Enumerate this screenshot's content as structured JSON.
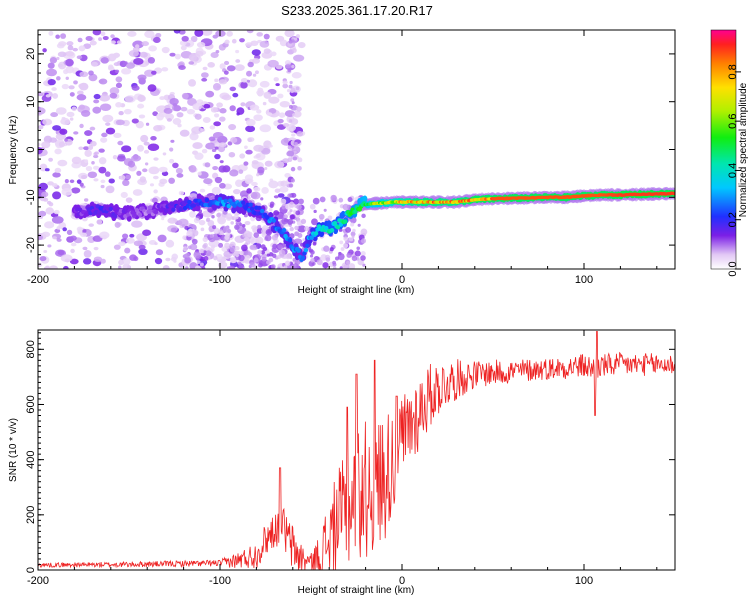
{
  "title": "S233.2025.361.17.20.R17",
  "chart_data": [
    {
      "type": "heatmap",
      "name": "spectrogram",
      "xlabel": "Height of straight line (km)",
      "ylabel": "Frequency (Hz)",
      "xlim": [
        -200,
        150
      ],
      "ylim": [
        -25,
        25
      ],
      "xticks": [
        -200,
        -100,
        0,
        100
      ],
      "xtick_labels": [
        "-200",
        "-100",
        "0",
        "100"
      ],
      "yticks": [
        -20,
        -10,
        0,
        10,
        20
      ],
      "ytick_labels": [
        "-20",
        "-10",
        "0",
        "10",
        "20"
      ],
      "ridge": {
        "x": [
          -175,
          -165,
          -155,
          -140,
          -125,
          -110,
          -100,
          -92,
          -85,
          -78,
          -72,
          -66,
          -62,
          -58,
          -55,
          -50,
          -45,
          -40,
          -35,
          -30,
          -25,
          -20,
          -15,
          -10,
          -5,
          0,
          10,
          20,
          30,
          40,
          50,
          60,
          70,
          80,
          90,
          100,
          110,
          120,
          130,
          140,
          150
        ],
        "freq": [
          -13,
          -12.5,
          -13.5,
          -13,
          -12,
          -11,
          -11,
          -11.5,
          -12,
          -13,
          -15,
          -17,
          -19,
          -21,
          -22.5,
          -18,
          -16.5,
          -16.5,
          -15.5,
          -14,
          -12,
          -11.5,
          -11.3,
          -11.2,
          -11,
          -11,
          -11,
          -11,
          -11,
          -10.5,
          -10.3,
          -10.2,
          -10.1,
          -10,
          -10,
          -9.7,
          -9.5,
          -9.5,
          -9.4,
          -9.3,
          -9.2
        ],
        "amplitude": [
          0.15,
          0.2,
          0.15,
          0.1,
          0.2,
          0.25,
          0.3,
          0.3,
          0.25,
          0.25,
          0.3,
          0.3,
          0.3,
          0.3,
          0.25,
          0.35,
          0.4,
          0.45,
          0.45,
          0.5,
          0.55,
          0.6,
          0.65,
          0.7,
          0.75,
          0.8,
          0.85,
          0.85,
          0.85,
          0.9,
          0.9,
          0.9,
          0.9,
          0.9,
          0.9,
          0.9,
          0.9,
          0.92,
          0.92,
          0.92,
          0.92
        ]
      },
      "colorbar": {
        "label": "Normalized spectral amplitude",
        "range": [
          0,
          0.97
        ],
        "ticks": [
          0,
          0.2,
          0.4,
          0.6,
          0.8
        ],
        "tick_labels": [
          "0.0",
          "0.2",
          "0.4",
          "0.6",
          "0.8"
        ]
      }
    },
    {
      "type": "line",
      "name": "snr",
      "xlabel": "Height of straight line (km)",
      "ylabel": "SNR (10 * v/v)",
      "xlim": [
        -200,
        150
      ],
      "ylim": [
        0,
        870
      ],
      "xticks": [
        -200,
        -100,
        0,
        100
      ],
      "xtick_labels": [
        "-200",
        "-100",
        "0",
        "100"
      ],
      "yticks": [
        0,
        200,
        400,
        600,
        800
      ],
      "ytick_labels": [
        "0",
        "200",
        "400",
        "600",
        "800"
      ],
      "color": "#ee2222",
      "envelope": {
        "x": [
          -200,
          -150,
          -100,
          -90,
          -80,
          -75,
          -70,
          -66,
          -62,
          -58,
          -54,
          -50,
          -45,
          -40,
          -35,
          -30,
          -25,
          -20,
          -15,
          -10,
          -5,
          0,
          5,
          10,
          15,
          20,
          25,
          30,
          35,
          40,
          50,
          60,
          70,
          80,
          90,
          100,
          105,
          110,
          120,
          130,
          140,
          150
        ],
        "y": [
          18,
          20,
          25,
          35,
          55,
          110,
          150,
          170,
          100,
          60,
          35,
          30,
          50,
          120,
          180,
          220,
          280,
          290,
          310,
          340,
          400,
          460,
          530,
          580,
          630,
          660,
          680,
          690,
          700,
          710,
          715,
          720,
          725,
          730,
          735,
          740,
          730,
          740,
          745,
          745,
          745,
          745
        ]
      },
      "noise": {
        "x": [
          -200,
          -100,
          -75,
          -60,
          -50,
          -40,
          -30,
          -20,
          -10,
          0,
          20,
          40,
          80,
          100,
          150
        ],
        "amp": [
          8,
          12,
          60,
          90,
          30,
          150,
          220,
          260,
          240,
          180,
          100,
          50,
          40,
          45,
          40
        ]
      },
      "spikes": [
        {
          "x": -67,
          "y": 370
        },
        {
          "x": -30,
          "y": 590
        },
        {
          "x": -25,
          "y": 710
        },
        {
          "x": -15,
          "y": 760
        },
        {
          "x": -3,
          "y": 630
        },
        {
          "x": 107,
          "y": 865
        },
        {
          "x": 106,
          "y": 560
        }
      ]
    }
  ]
}
